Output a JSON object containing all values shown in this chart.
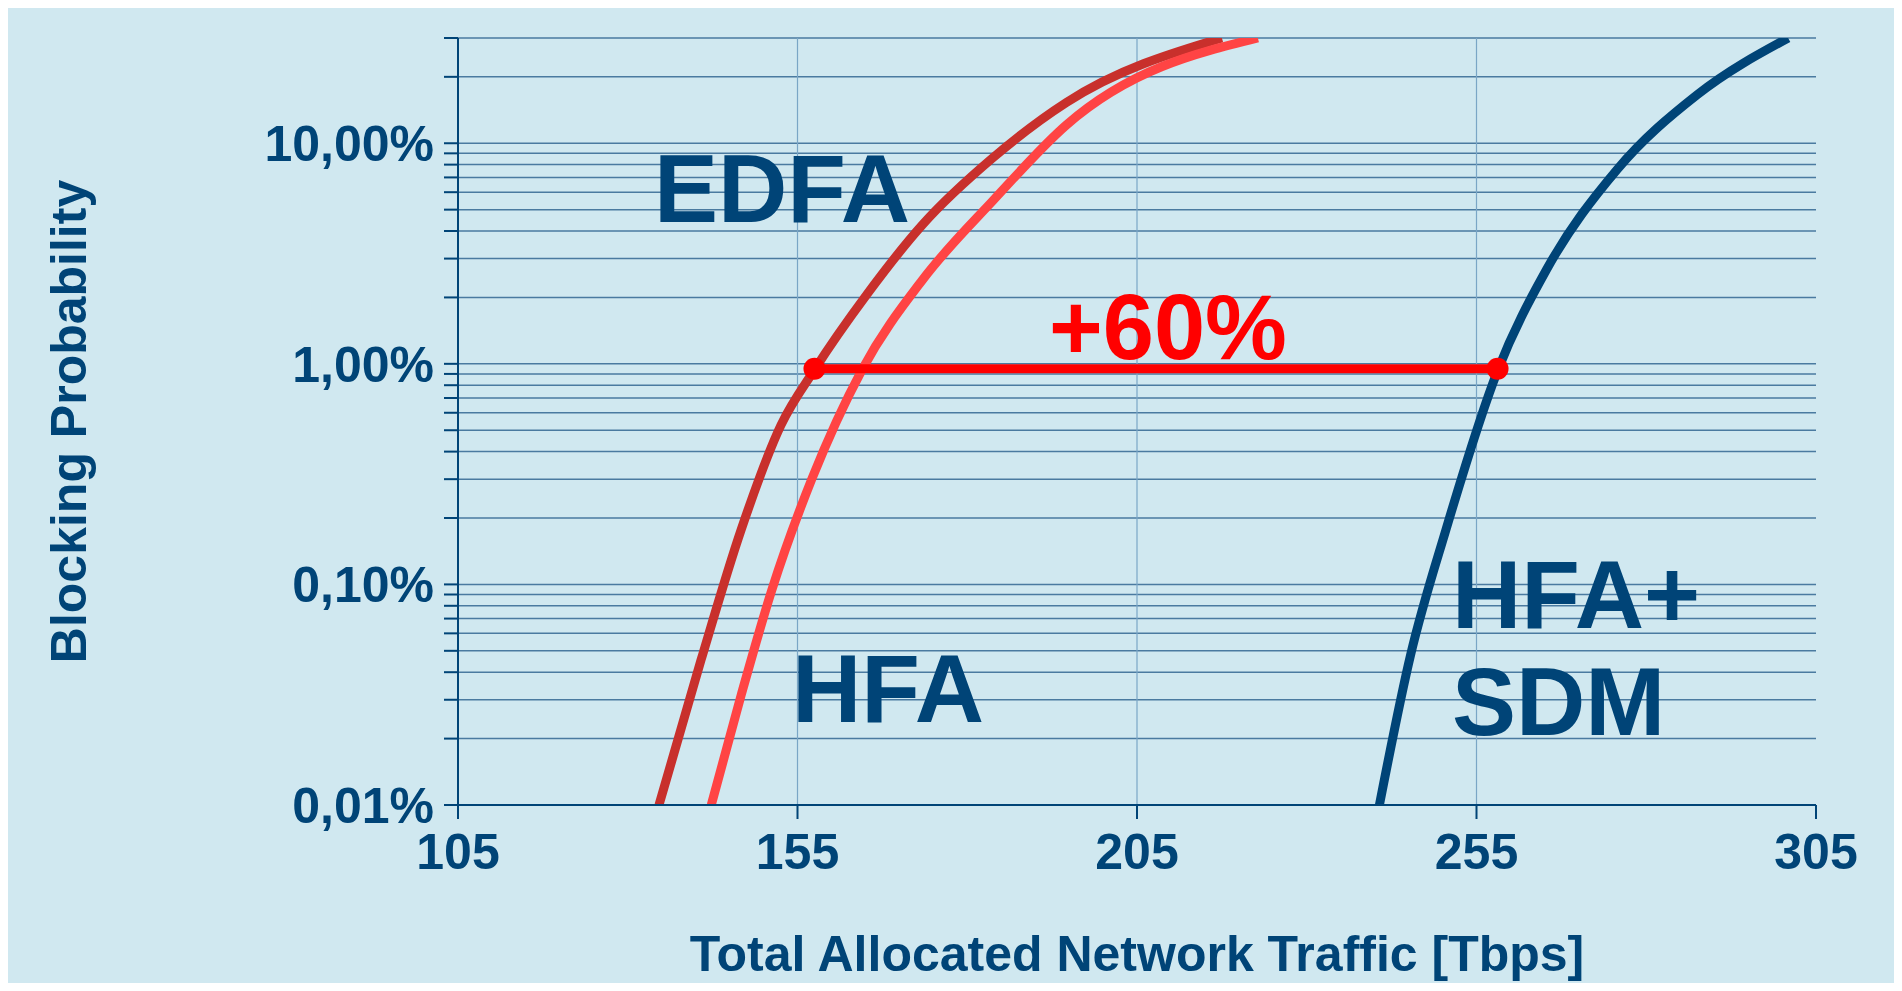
{
  "chart_data": {
    "type": "line",
    "xlabel": "Total Allocated Network Traffic [Tbps]",
    "ylabel": "Blocking Probability",
    "log": "y",
    "grid": true,
    "marker": "none",
    "line_style": "solid",
    "xlim": [
      105,
      305
    ],
    "xticks": [
      105,
      155,
      205,
      255,
      305
    ],
    "ylim": [
      0.01,
      30
    ],
    "yticks": [
      {
        "value": 0.01,
        "label": "0,01%"
      },
      {
        "value": 0.02,
        "label": null
      },
      {
        "value": 0.03,
        "label": null
      },
      {
        "value": 0.04,
        "label": null
      },
      {
        "value": 0.05,
        "label": null
      },
      {
        "value": 0.06,
        "label": null
      },
      {
        "value": 0.07,
        "label": null
      },
      {
        "value": 0.08,
        "label": null
      },
      {
        "value": 0.09,
        "label": null
      },
      {
        "value": 0.1,
        "label": "0,10%"
      },
      {
        "value": 0.2,
        "label": null
      },
      {
        "value": 0.3,
        "label": null
      },
      {
        "value": 0.4,
        "label": null
      },
      {
        "value": 0.5,
        "label": null
      },
      {
        "value": 0.6,
        "label": null
      },
      {
        "value": 0.7,
        "label": null
      },
      {
        "value": 0.8,
        "label": null
      },
      {
        "value": 0.9,
        "label": null
      },
      {
        "value": 1,
        "label": "1,00%"
      },
      {
        "value": 2,
        "label": null
      },
      {
        "value": 3,
        "label": null
      },
      {
        "value": 4,
        "label": null
      },
      {
        "value": 5,
        "label": null
      },
      {
        "value": 6,
        "label": null
      },
      {
        "value": 7,
        "label": null
      },
      {
        "value": 8,
        "label": null
      },
      {
        "value": 9,
        "label": null
      },
      {
        "value": 10,
        "label": "10,00%"
      },
      {
        "value": 20,
        "label": null
      },
      {
        "value": 30,
        "label": null
      }
    ],
    "series": [
      {
        "color": "#c8302c",
        "x": [
          134.6,
          140.8,
          146.7,
          152.6,
          157.5,
          165.2,
          173.4,
          183.8,
          194.6,
          217.5
        ],
        "values": [
          0.01,
          0.0455,
          0.177,
          0.53,
          0.94,
          2.06,
          4.27,
          8.6,
          15.3,
          30
        ]
      },
      {
        "color": "#ff4444",
        "x": [
          142.3,
          146.7,
          151.2,
          157.1,
          164.5,
          173.4,
          183.8,
          194.6,
          222.8
        ],
        "values": [
          0.01,
          0.0315,
          0.094,
          0.3,
          0.94,
          2.4,
          5.5,
          12.1,
          30
        ]
      },
      {
        "color": "#004477",
        "x": [
          240.7,
          245.3,
          250.5,
          258.1,
          265.3,
          275.7,
          287.5,
          300.9
        ],
        "values": [
          0.01,
          0.048,
          0.177,
          0.93,
          2.67,
          7.6,
          16.6,
          30
        ]
      },
      {
        "color": "#ff0000",
        "marker": "circle",
        "x": [
          157.5,
          258.1
        ],
        "values": [
          0.95,
          0.95
        ]
      }
    ],
    "annotations": [
      "EDFA",
      "HFA",
      "HFA+ SDM",
      "+60%"
    ]
  }
}
